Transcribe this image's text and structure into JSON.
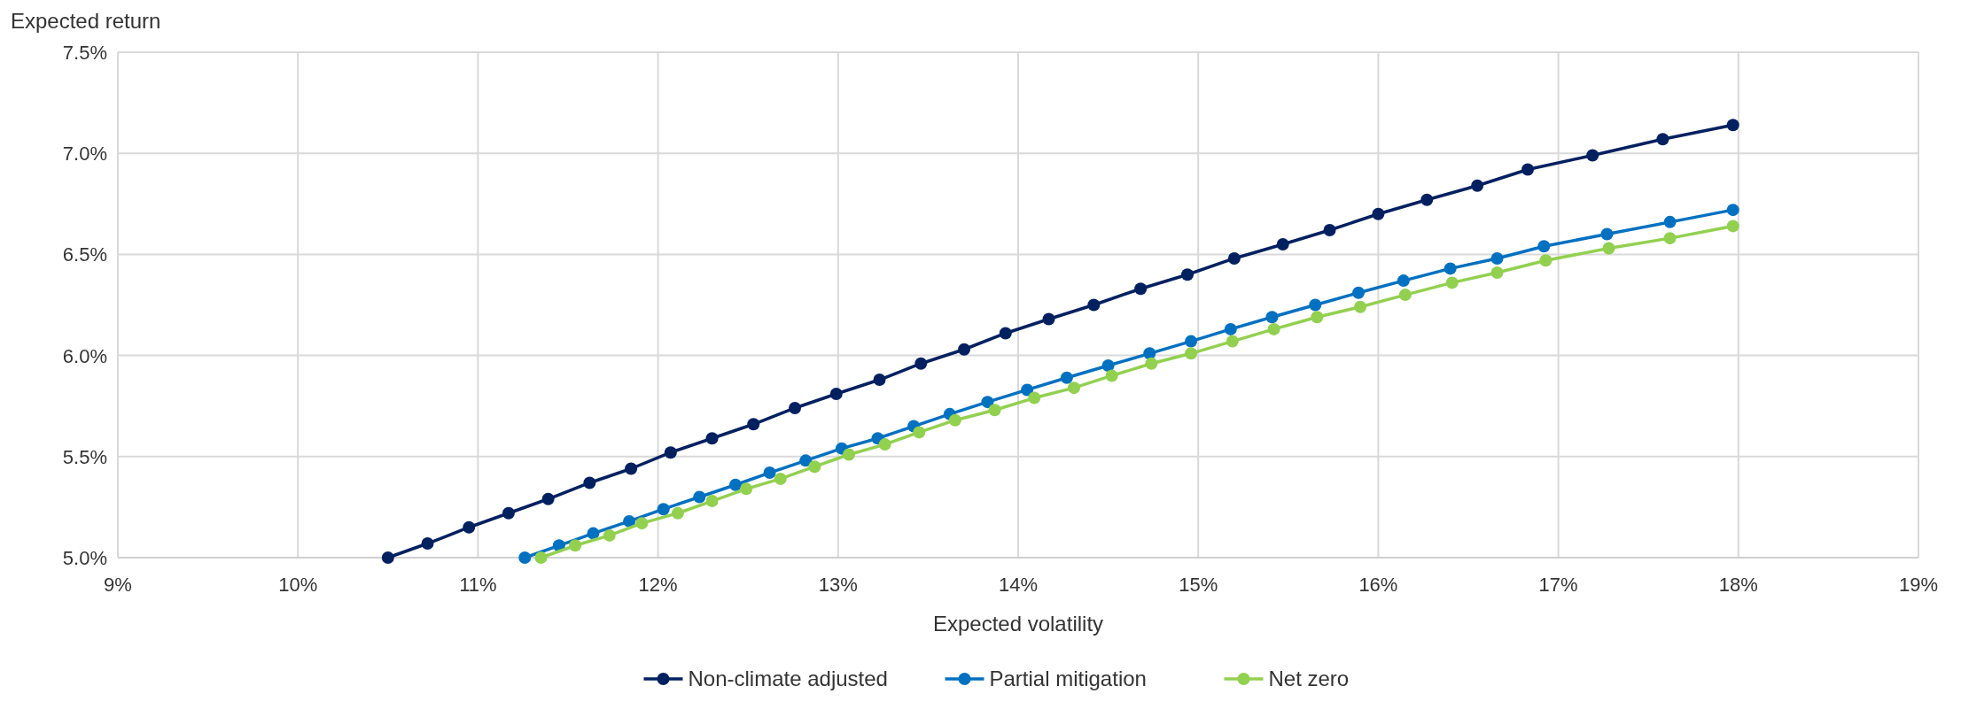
{
  "chart_data": {
    "type": "line",
    "xlabel": "Expected volatility",
    "ylabel": "Expected return",
    "xlim": [
      9,
      19
    ],
    "ylim": [
      5,
      7.5
    ],
    "xticks": [
      {
        "value": 9,
        "label": "9%"
      },
      {
        "value": 10,
        "label": "10%"
      },
      {
        "value": 11,
        "label": "11%"
      },
      {
        "value": 12,
        "label": "12%"
      },
      {
        "value": 13,
        "label": "13%"
      },
      {
        "value": 14,
        "label": "14%"
      },
      {
        "value": 15,
        "label": "15%"
      },
      {
        "value": 16,
        "label": "16%"
      },
      {
        "value": 17,
        "label": "17%"
      },
      {
        "value": 18,
        "label": "18%"
      },
      {
        "value": 19,
        "label": "19%"
      }
    ],
    "yticks": [
      {
        "value": 5,
        "label": "5.0%"
      },
      {
        "value": 5.5,
        "label": "5.5%"
      },
      {
        "value": 6,
        "label": "6.0%"
      },
      {
        "value": 6.5,
        "label": "6.5%"
      },
      {
        "value": 7,
        "label": "7.0%"
      },
      {
        "value": 7.5,
        "label": "7.5%"
      }
    ],
    "grid": true,
    "legend": "bottom",
    "marker": "circle",
    "line_style": "solid",
    "series": [
      {
        "name": "Non-climate adjusted",
        "color": "#002060",
        "x": [
          10.5,
          10.72,
          10.95,
          11.17,
          11.39,
          11.62,
          11.85,
          12.07,
          12.3,
          12.53,
          12.76,
          12.99,
          13.23,
          13.46,
          13.7,
          13.93,
          14.17,
          14.42,
          14.68,
          14.94,
          15.2,
          15.47,
          15.73,
          16.0,
          16.27,
          16.55,
          16.83,
          17.19,
          17.58,
          17.97
        ],
        "values": [
          5.0,
          5.07,
          5.15,
          5.22,
          5.29,
          5.37,
          5.44,
          5.52,
          5.59,
          5.66,
          5.74,
          5.81,
          5.88,
          5.96,
          6.03,
          6.11,
          6.18,
          6.25,
          6.33,
          6.4,
          6.48,
          6.55,
          6.62,
          6.7,
          6.77,
          6.84,
          6.92,
          6.99,
          7.07,
          7.14
        ]
      },
      {
        "name": "Partial mitigation",
        "color": "#0070c0",
        "x": [
          11.26,
          11.45,
          11.64,
          11.84,
          12.03,
          12.23,
          12.43,
          12.62,
          12.82,
          13.02,
          13.22,
          13.42,
          13.62,
          13.83,
          14.05,
          14.27,
          14.5,
          14.73,
          14.96,
          15.18,
          15.41,
          15.65,
          15.89,
          16.14,
          16.4,
          16.66,
          16.92,
          17.27,
          17.62,
          17.97
        ],
        "values": [
          5.0,
          5.06,
          5.12,
          5.18,
          5.24,
          5.3,
          5.36,
          5.42,
          5.48,
          5.54,
          5.59,
          5.65,
          5.71,
          5.77,
          5.83,
          5.89,
          5.95,
          6.01,
          6.07,
          6.13,
          6.19,
          6.25,
          6.31,
          6.37,
          6.43,
          6.48,
          6.54,
          6.6,
          6.66,
          6.72
        ]
      },
      {
        "name": "Net zero",
        "color": "#92d050",
        "x": [
          11.35,
          11.54,
          11.73,
          11.91,
          12.11,
          12.3,
          12.49,
          12.68,
          12.87,
          13.06,
          13.26,
          13.45,
          13.65,
          13.87,
          14.09,
          14.31,
          14.52,
          14.74,
          14.96,
          15.19,
          15.42,
          15.66,
          15.9,
          16.15,
          16.41,
          16.66,
          16.93,
          17.28,
          17.62,
          17.97
        ],
        "values": [
          5.0,
          5.06,
          5.11,
          5.17,
          5.22,
          5.28,
          5.34,
          5.39,
          5.45,
          5.51,
          5.56,
          5.62,
          5.68,
          5.73,
          5.79,
          5.84,
          5.9,
          5.96,
          6.01,
          6.07,
          6.13,
          6.19,
          6.24,
          6.3,
          6.36,
          6.41,
          6.47,
          6.53,
          6.58,
          6.64
        ]
      }
    ]
  }
}
